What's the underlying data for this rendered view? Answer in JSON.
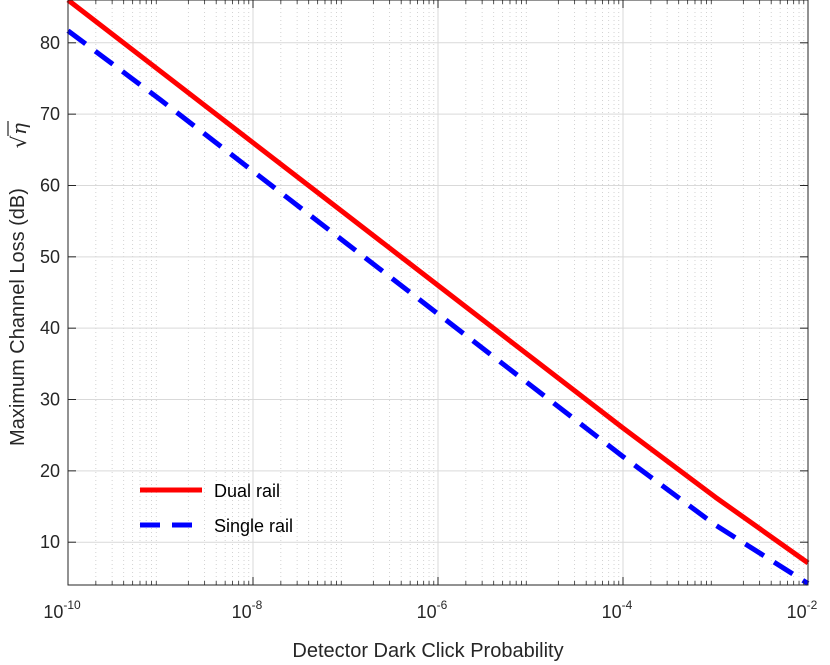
{
  "chart_data": {
    "type": "line",
    "x_scale": "log",
    "xlim": [
      1e-10,
      0.01
    ],
    "ylim": [
      4,
      86
    ],
    "x_ticks": [
      {
        "base": "10",
        "exp": "-10"
      },
      {
        "base": "10",
        "exp": "-8"
      },
      {
        "base": "10",
        "exp": "-6"
      },
      {
        "base": "10",
        "exp": "-4"
      },
      {
        "base": "10",
        "exp": "-2"
      }
    ],
    "y_ticks": [
      "10",
      "20",
      "30",
      "40",
      "50",
      "60",
      "70",
      "80"
    ],
    "xlabel": "Detector Dark Click Probability",
    "ylabel": "Maximum Channel Loss (dB)",
    "ylabel_symbol_root": "√",
    "ylabel_symbol_var": "η",
    "grid": true,
    "legend_position": "bottom-left",
    "series": [
      {
        "name": "Dual rail",
        "color": "#ff0000",
        "style": "solid",
        "x": [
          1e-10,
          1e-09,
          1e-08,
          1e-07,
          1e-06,
          1e-05,
          0.0001,
          0.001,
          0.01
        ],
        "y": [
          86,
          76,
          66,
          56,
          46,
          36,
          26,
          16.3,
          7.1
        ]
      },
      {
        "name": "Single rail",
        "color": "#0000ff",
        "style": "dashed",
        "x": [
          1e-10,
          1e-09,
          1e-08,
          1e-07,
          1e-06,
          1e-05,
          0.0001,
          0.001,
          0.01
        ],
        "y": [
          81.7,
          72,
          62,
          52,
          42,
          32,
          22,
          12.4,
          4.2
        ]
      }
    ]
  }
}
